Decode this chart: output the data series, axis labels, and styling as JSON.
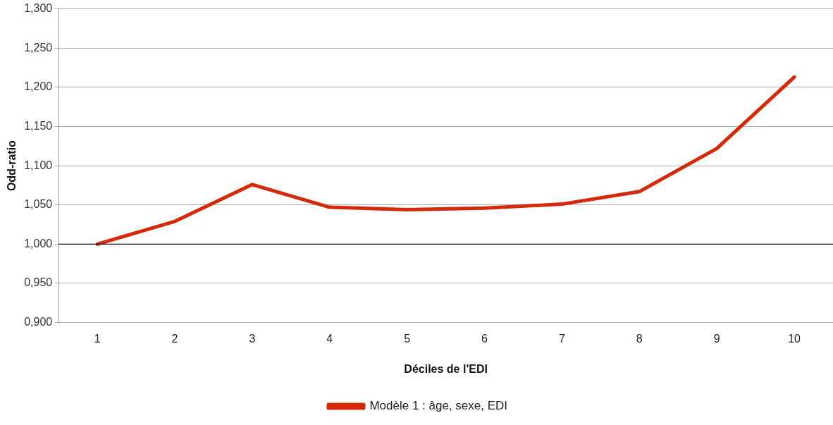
{
  "chart_data": {
    "type": "line",
    "xlabel": "Déciles de l'EDI",
    "ylabel": "Odd-ratio",
    "categories": [
      "1",
      "2",
      "3",
      "4",
      "5",
      "6",
      "7",
      "8",
      "9",
      "10"
    ],
    "series": [
      {
        "name": "Modèle 1 : âge, sexe, EDI",
        "color": "#d42a0a",
        "values": [
          1.0,
          1.029,
          1.076,
          1.047,
          1.044,
          1.046,
          1.051,
          1.067,
          1.122,
          1.213
        ]
      }
    ],
    "ylim": [
      0.9,
      1.3
    ],
    "yticks": [
      {
        "value": 0.9,
        "label": "0,900"
      },
      {
        "value": 0.95,
        "label": "0,950"
      },
      {
        "value": 1.0,
        "label": "1,000"
      },
      {
        "value": 1.05,
        "label": "1,050"
      },
      {
        "value": 1.1,
        "label": "1,100"
      },
      {
        "value": 1.15,
        "label": "1,150"
      },
      {
        "value": 1.2,
        "label": "1,200"
      },
      {
        "value": 1.25,
        "label": "1,250"
      },
      {
        "value": 1.3,
        "label": "1,300"
      }
    ],
    "ref_lines": [
      {
        "axis": "y",
        "value": 1.0,
        "color": "#000000"
      }
    ],
    "grid": "y",
    "legend": "bottom",
    "marker": "none",
    "line_style": "solid"
  }
}
